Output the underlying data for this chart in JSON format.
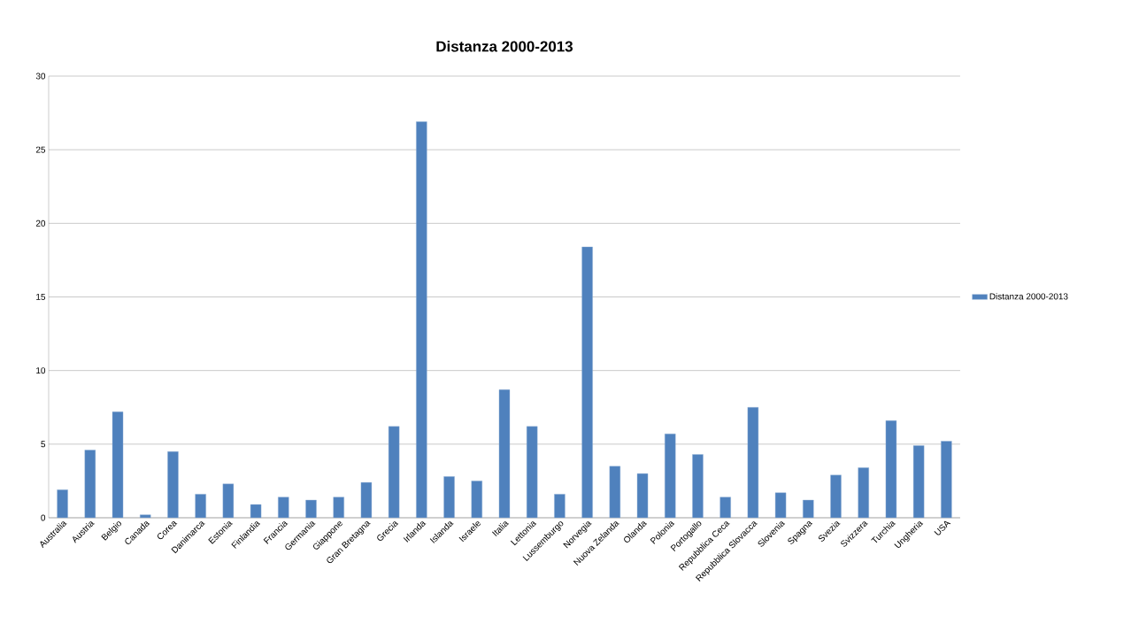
{
  "chart_data": {
    "type": "bar",
    "title": "Distanza 2000-2013",
    "categories": [
      "Australia",
      "Austria",
      "Belgio",
      "Canada",
      "Corea",
      "Danimarca",
      "Estonia",
      "Finlandia",
      "Francia",
      "Germania",
      "Giappone",
      "Gran Bretagna",
      "Grecia",
      "Irlanda",
      "Islanda",
      "Israele",
      "Italia",
      "Lettonia",
      "Lussemburgo",
      "Norvegia",
      "Nuova Zelanda",
      "Olanda",
      "Polonia",
      "Portogallo",
      "Repubblica Ceca",
      "Repubblica Slovacca",
      "Slovenia",
      "Spagna",
      "Svezia",
      "Svizzera",
      "Turchia",
      "Ungheria",
      "USA"
    ],
    "series": [
      {
        "name": "Distanza 2000-2013",
        "color": "#4f81bd",
        "values": [
          1.9,
          4.6,
          7.2,
          0.2,
          4.5,
          1.6,
          2.3,
          0.9,
          1.4,
          1.2,
          1.4,
          2.4,
          6.2,
          26.9,
          2.8,
          2.5,
          8.7,
          6.2,
          1.6,
          18.4,
          3.5,
          3.0,
          5.7,
          4.3,
          1.4,
          7.5,
          1.7,
          1.2,
          2.9,
          3.4,
          6.6,
          4.9,
          5.2
        ]
      }
    ],
    "ylim": [
      0,
      30
    ],
    "yticks": [
      0,
      5,
      10,
      15,
      20,
      25,
      30
    ],
    "grid": "y",
    "legend": "right"
  }
}
